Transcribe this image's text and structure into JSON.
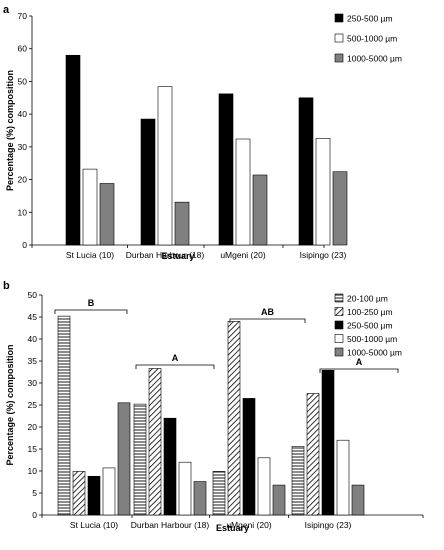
{
  "chart_data": [
    {
      "type": "bar",
      "panel_label": "a",
      "categories": [
        "St Lucia (10)",
        "Durban Harbour (18)",
        "uMgeni (20)",
        "Isipingo (23)"
      ],
      "series": [
        {
          "name": "250-500 µm",
          "values": [
            58,
            38.5,
            46.2,
            45
          ],
          "color": "#000000",
          "pattern": "solid"
        },
        {
          "name": "500-1000 µm",
          "values": [
            23.2,
            48.4,
            32.4,
            32.6
          ],
          "color": "#ffffff",
          "pattern": "solid"
        },
        {
          "name": "1000-5000 µm",
          "values": [
            18.8,
            13.1,
            21.4,
            22.4
          ],
          "color": "#808080",
          "pattern": "solid"
        }
      ],
      "ylabel": "Percentage (%) composition",
      "xlabel": "Estuary",
      "ylim": [
        0,
        70
      ],
      "yticks": [
        0,
        10,
        20,
        30,
        40,
        50,
        60,
        70
      ],
      "legend_position": "top-right",
      "grid": false
    },
    {
      "type": "bar",
      "panel_label": "b",
      "categories": [
        "St Lucia (10)",
        "Durban Harbour (18)",
        "uMgeni (20)",
        "Isipingo (23)"
      ],
      "series": [
        {
          "name": "20-100 µm",
          "values": [
            45.2,
            25.2,
            9.9,
            15.6
          ],
          "color": "#ffffff",
          "pattern": "horizontal-lines"
        },
        {
          "name": "100-250 µm",
          "values": [
            9.9,
            33.3,
            44,
            27.6
          ],
          "color": "#ffffff",
          "pattern": "diagonal-lines"
        },
        {
          "name": "250-500 µm",
          "values": [
            8.8,
            22,
            26.5,
            32.9
          ],
          "color": "#000000",
          "pattern": "solid"
        },
        {
          "name": "500-1000 µm",
          "values": [
            10.7,
            12,
            13,
            17
          ],
          "color": "#ffffff",
          "pattern": "solid"
        },
        {
          "name": "1000-5000 µm",
          "values": [
            25.5,
            7.6,
            6.8,
            6.8
          ],
          "color": "#808080",
          "pattern": "solid"
        }
      ],
      "ylabel": "Percentage (%) composition",
      "xlabel": "Estuary",
      "ylim": [
        0,
        50
      ],
      "yticks": [
        0,
        5,
        10,
        15,
        20,
        25,
        30,
        35,
        40,
        45,
        50
      ],
      "legend_position": "top-right",
      "grid": false,
      "group_labels": [
        "B",
        "A",
        "AB",
        "A"
      ]
    }
  ]
}
